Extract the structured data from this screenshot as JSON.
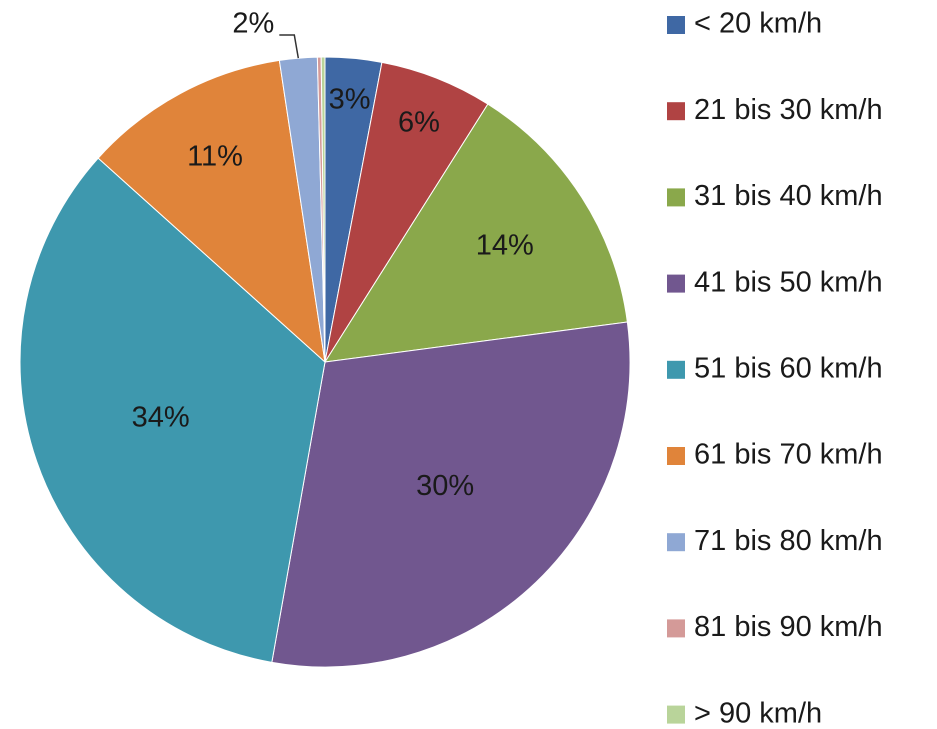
{
  "chart_data": {
    "type": "pie",
    "categories": [
      "< 20 km/h",
      "21 bis 30 km/h",
      "31 bis 40 km/h",
      "41 bis 50 km/h",
      "51 bis 60 km/h",
      "61 bis 70 km/h",
      "71 bis 80 km/h",
      "81 bis 90 km/h",
      "> 90 km/h"
    ],
    "values": [
      3,
      6,
      14,
      30,
      34,
      11,
      2,
      0.2,
      0.2
    ],
    "value_labels": [
      "3%",
      "6%",
      "14%",
      "30%",
      "34%",
      "11%",
      "2%",
      null,
      null
    ],
    "colors": [
      "#3f68a4",
      "#b04343",
      "#8aa84b",
      "#71578f",
      "#3e98ae",
      "#e0843a",
      "#8fa8d4",
      "#d49a98",
      "#b9d49a"
    ],
    "legend": "right"
  }
}
